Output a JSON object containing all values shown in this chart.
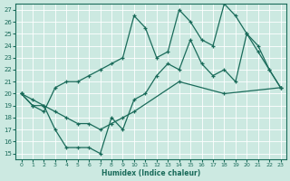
{
  "xlabel": "Humidex (Indice chaleur)",
  "xlim": [
    -0.5,
    23.5
  ],
  "ylim": [
    14.5,
    27.5
  ],
  "yticks": [
    15,
    16,
    17,
    18,
    19,
    20,
    21,
    22,
    23,
    24,
    25,
    26,
    27
  ],
  "xticks": [
    0,
    1,
    2,
    3,
    4,
    5,
    6,
    7,
    8,
    9,
    10,
    11,
    12,
    13,
    14,
    15,
    16,
    17,
    18,
    19,
    20,
    21,
    22,
    23
  ],
  "bg_color": "#cce9e1",
  "line_color": "#1a6b5a",
  "line1_x": [
    0,
    1,
    2,
    3,
    4,
    5,
    6,
    7,
    8,
    9,
    10,
    11,
    12,
    13,
    14,
    15,
    16,
    17,
    18,
    19,
    20,
    21,
    22,
    23
  ],
  "line1_y": [
    20,
    19,
    18.5,
    20.5,
    21,
    21,
    21.5,
    22,
    22.5,
    23,
    26.5,
    25.5,
    23,
    23.5,
    27,
    26,
    24.5,
    24,
    27.5,
    26.5,
    25,
    23.5,
    22,
    20.5
  ],
  "line2_x": [
    0,
    1,
    2,
    3,
    4,
    5,
    6,
    7,
    8,
    9,
    10,
    11,
    12,
    13,
    14,
    15,
    16,
    17,
    18,
    19,
    20,
    21,
    22,
    23
  ],
  "line2_y": [
    20,
    19,
    19.0,
    17,
    15.5,
    15.5,
    15.5,
    15,
    18.0,
    17,
    19.5,
    20,
    21.5,
    22.5,
    22,
    24.5,
    22.5,
    21.5,
    22,
    21,
    25,
    24,
    22,
    20.5
  ],
  "line3_x": [
    0,
    1,
    2,
    3,
    4,
    5,
    6,
    7,
    8,
    9,
    10,
    14,
    18,
    23
  ],
  "line3_y": [
    20,
    19.5,
    19,
    18.5,
    18,
    17.5,
    17.5,
    17,
    17.5,
    18,
    18.5,
    21,
    20,
    20.5
  ]
}
